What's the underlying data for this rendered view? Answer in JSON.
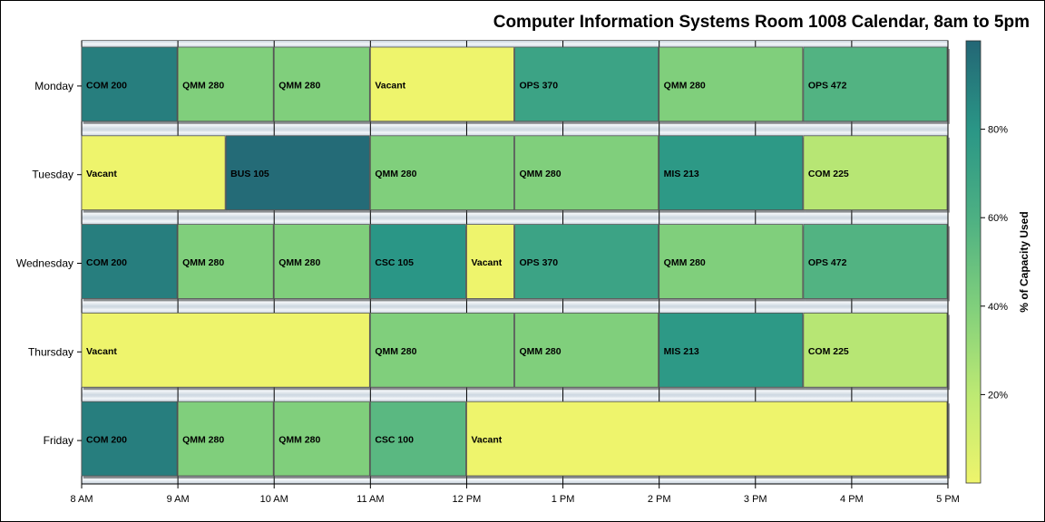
{
  "chart_data": {
    "type": "bar",
    "orientation": "horizontal",
    "stacked": true,
    "title": "Computer Information Systems Room 1008 Calendar, 8am to 5pm",
    "x_ticks": [
      "8 AM",
      "9 AM",
      "10 AM",
      "11 AM",
      "12 PM",
      "1 PM",
      "2 PM",
      "3 PM",
      "4 PM",
      "5 PM"
    ],
    "xlim_hours": [
      8,
      17
    ],
    "categories": [
      "Monday",
      "Tuesday",
      "Wednesday",
      "Thursday",
      "Friday"
    ],
    "colorbar": {
      "label": "% of Capacity Used",
      "ticks": [
        "20%",
        "40%",
        "60%",
        "80%"
      ],
      "tick_values": [
        20,
        40,
        60,
        80
      ],
      "range": [
        0,
        100
      ],
      "colors": [
        "#eef46c",
        "#bde973",
        "#80cf7c",
        "#4db083",
        "#2a9686",
        "#236675"
      ]
    },
    "days": [
      {
        "day": "Monday",
        "blocks": [
          {
            "label": "COM 200",
            "start": 8,
            "end": 9,
            "capacity": 90
          },
          {
            "label": "QMM 280",
            "start": 9,
            "end": 10,
            "capacity": 40
          },
          {
            "label": "QMM 280",
            "start": 10,
            "end": 11,
            "capacity": 40
          },
          {
            "label": "Vacant",
            "start": 11,
            "end": 12.5,
            "capacity": 0
          },
          {
            "label": "OPS 370",
            "start": 12.5,
            "end": 14,
            "capacity": 70
          },
          {
            "label": "QMM 280",
            "start": 14,
            "end": 15.5,
            "capacity": 40
          },
          {
            "label": "OPS 472",
            "start": 15.5,
            "end": 17,
            "capacity": 58
          }
        ]
      },
      {
        "day": "Tuesday",
        "blocks": [
          {
            "label": "Vacant",
            "start": 8,
            "end": 9.5,
            "capacity": 0
          },
          {
            "label": "BUS 105",
            "start": 9.5,
            "end": 11,
            "capacity": 98
          },
          {
            "label": "QMM 280",
            "start": 11,
            "end": 12.5,
            "capacity": 40
          },
          {
            "label": "QMM 280",
            "start": 12.5,
            "end": 14,
            "capacity": 40
          },
          {
            "label": "MIS 213",
            "start": 14,
            "end": 15.5,
            "capacity": 78
          },
          {
            "label": "COM 225",
            "start": 15.5,
            "end": 17,
            "capacity": 22
          }
        ]
      },
      {
        "day": "Wednesday",
        "blocks": [
          {
            "label": "COM 200",
            "start": 8,
            "end": 9,
            "capacity": 90
          },
          {
            "label": "QMM 280",
            "start": 9,
            "end": 10,
            "capacity": 40
          },
          {
            "label": "QMM 280",
            "start": 10,
            "end": 11,
            "capacity": 40
          },
          {
            "label": "CSC 105",
            "start": 11,
            "end": 12,
            "capacity": 80
          },
          {
            "label": "Vacant",
            "start": 12,
            "end": 12.5,
            "capacity": 0
          },
          {
            "label": "OPS 370",
            "start": 12.5,
            "end": 14,
            "capacity": 70
          },
          {
            "label": "QMM 280",
            "start": 14,
            "end": 15.5,
            "capacity": 40
          },
          {
            "label": "OPS 472",
            "start": 15.5,
            "end": 17,
            "capacity": 58
          }
        ]
      },
      {
        "day": "Thursday",
        "blocks": [
          {
            "label": "Vacant",
            "start": 8,
            "end": 11,
            "capacity": 0
          },
          {
            "label": "QMM 280",
            "start": 11,
            "end": 12.5,
            "capacity": 40
          },
          {
            "label": "QMM 280",
            "start": 12.5,
            "end": 14,
            "capacity": 40
          },
          {
            "label": "MIS 213",
            "start": 14,
            "end": 15.5,
            "capacity": 78
          },
          {
            "label": "COM 225",
            "start": 15.5,
            "end": 17,
            "capacity": 22
          }
        ]
      },
      {
        "day": "Friday",
        "blocks": [
          {
            "label": "COM 200",
            "start": 8,
            "end": 9,
            "capacity": 90
          },
          {
            "label": "QMM 280",
            "start": 9,
            "end": 10,
            "capacity": 40
          },
          {
            "label": "QMM 280",
            "start": 10,
            "end": 11,
            "capacity": 40
          },
          {
            "label": "CSC 100",
            "start": 11,
            "end": 12,
            "capacity": 55
          },
          {
            "label": "Vacant",
            "start": 12,
            "end": 17,
            "capacity": 0
          }
        ]
      }
    ]
  }
}
